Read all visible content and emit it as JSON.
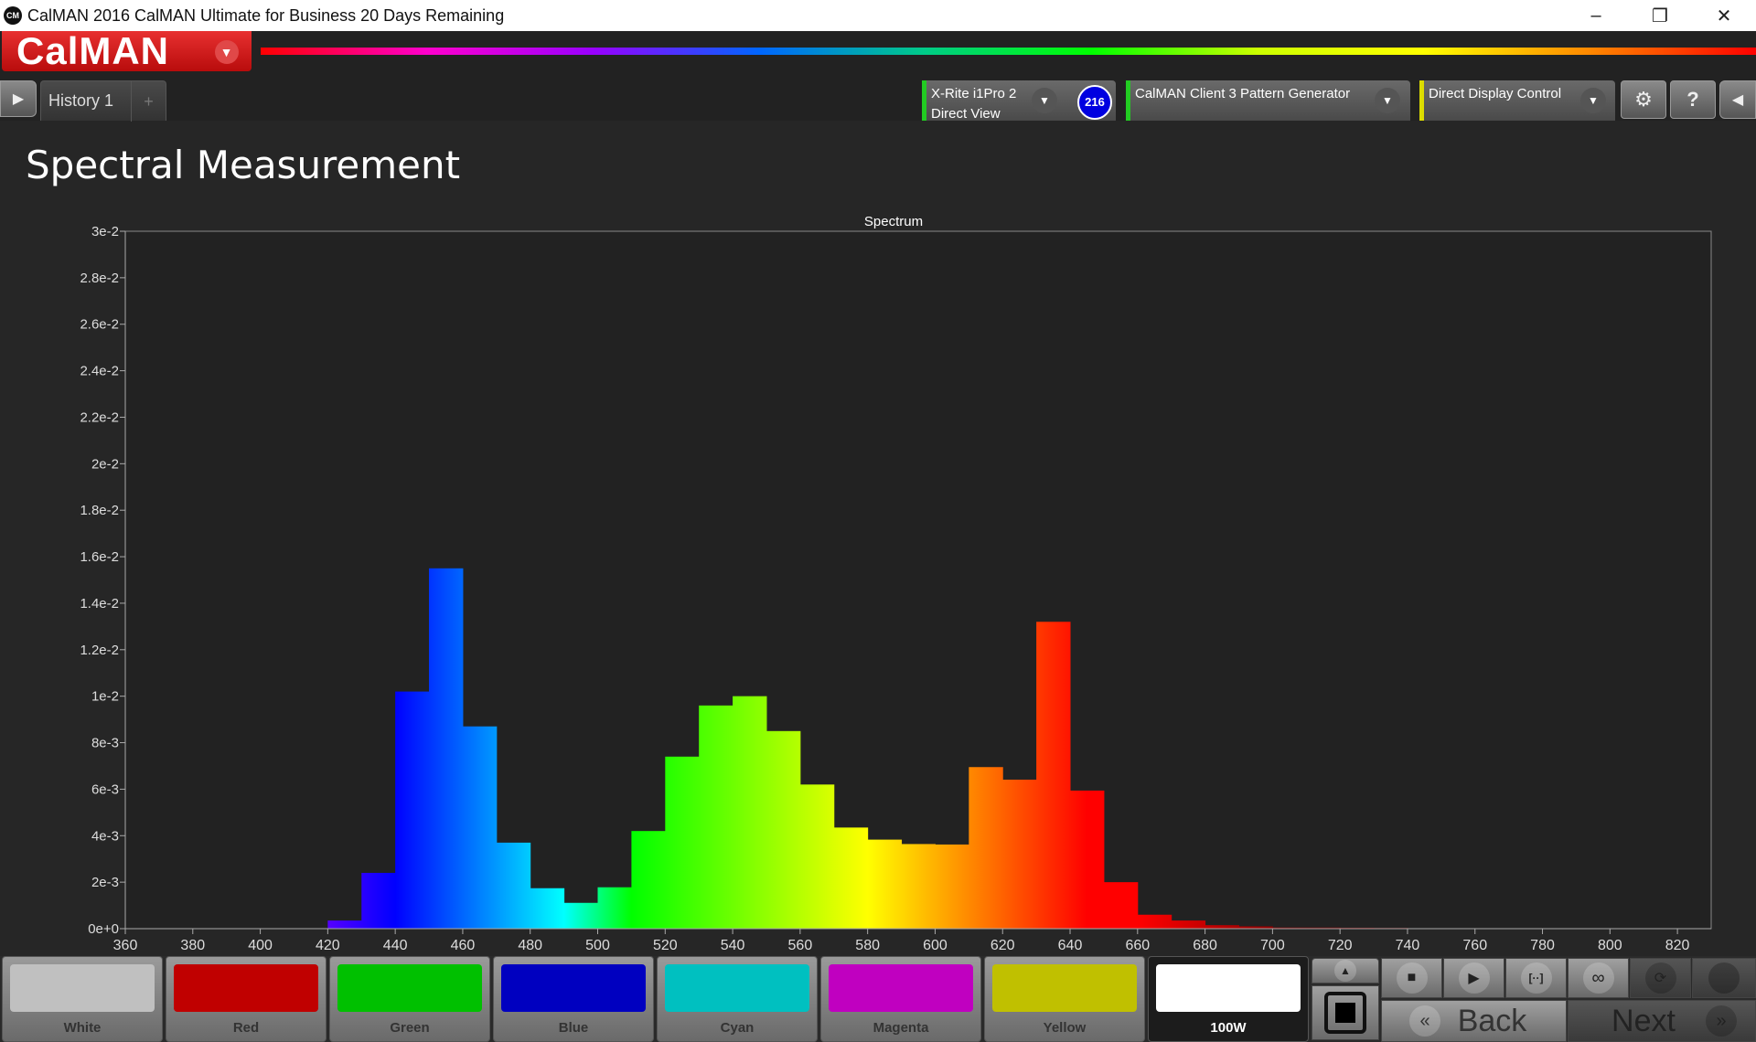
{
  "window": {
    "title": "CalMAN 2016 CalMAN Ultimate for Business 20 Days Remaining",
    "app_icon": "CM"
  },
  "logo": {
    "text": "CalMAN"
  },
  "tabs": [
    {
      "label": "History 1"
    }
  ],
  "devices": [
    {
      "line1": "X-Rite i1Pro 2",
      "line2": "Direct View",
      "color": "#22cc22",
      "badge": "216"
    },
    {
      "line1": "CalMAN Client 3 Pattern Generator",
      "line2": "",
      "color": "#22cc22"
    },
    {
      "line1": "Direct Display Control",
      "line2": "",
      "color": "#dddd00"
    }
  ],
  "page": {
    "title": "Spectral Measurement"
  },
  "chart_data": {
    "type": "bar",
    "title": "Spectrum",
    "xlabel": "",
    "ylabel": "",
    "xlim": [
      360,
      830
    ],
    "ylim": [
      0,
      0.03
    ],
    "grid": false,
    "x_ticks": [
      360,
      380,
      400,
      420,
      440,
      460,
      480,
      500,
      520,
      540,
      560,
      580,
      600,
      620,
      640,
      660,
      680,
      700,
      720,
      740,
      760,
      780,
      800,
      820
    ],
    "y_ticks": [
      "0e+0",
      "2e-3",
      "4e-3",
      "6e-3",
      "8e-3",
      "1e-2",
      "1.2e-2",
      "1.4e-2",
      "1.6e-2",
      "1.8e-2",
      "2e-2",
      "2.2e-2",
      "2.4e-2",
      "2.6e-2",
      "2.8e-2",
      "3e-2"
    ],
    "bin_width_nm": 10,
    "bins_start_nm": [
      420,
      430,
      440,
      450,
      460,
      470,
      480,
      490,
      500,
      510,
      520,
      530,
      540,
      550,
      560,
      570,
      580,
      590,
      600,
      610,
      620,
      630,
      640,
      650,
      660,
      670,
      680,
      690,
      700,
      710,
      720,
      730
    ],
    "values": [
      0.00035,
      0.0024,
      0.0102,
      0.0155,
      0.0087,
      0.0037,
      0.00174,
      0.00111,
      0.00178,
      0.0042,
      0.0074,
      0.0096,
      0.01,
      0.0085,
      0.0062,
      0.00435,
      0.00383,
      0.00364,
      0.00362,
      0.00695,
      0.00641,
      0.0132,
      0.00594,
      0.002,
      0.0006,
      0.00035,
      0.00015,
      0.0001,
      5e-05,
      5e-05,
      4e-05,
      3e-05
    ]
  },
  "patches": [
    {
      "label": "White",
      "color": "#c0c0c0"
    },
    {
      "label": "Red",
      "color": "#c00000"
    },
    {
      "label": "Green",
      "color": "#00c000"
    },
    {
      "label": "Blue",
      "color": "#0000c0"
    },
    {
      "label": "Cyan",
      "color": "#00c0c0"
    },
    {
      "label": "Magenta",
      "color": "#c000c0"
    },
    {
      "label": "Yellow",
      "color": "#c0c000"
    },
    {
      "label": "100W",
      "color": "#ffffff",
      "selected": true
    }
  ],
  "nav": {
    "back": "Back",
    "next": "Next"
  }
}
